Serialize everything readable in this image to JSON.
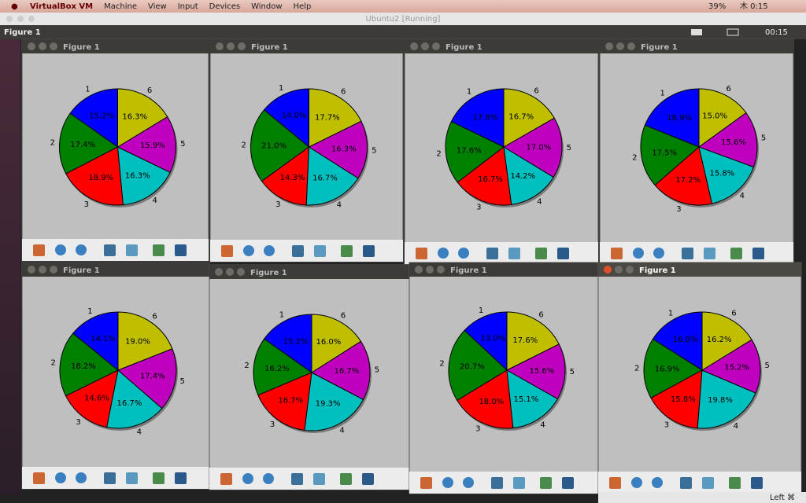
{
  "mac_menu": {
    "items": [
      "VirtualBox VM",
      "Machine",
      "View",
      "Input",
      "Devices",
      "Window",
      "Help"
    ],
    "battery": "39%",
    "clock": "木 0:15"
  },
  "vm_title": "Ubuntu2 [Running]",
  "panel": {
    "title": "Figure 1",
    "clock": "00:15"
  },
  "host_key": "Left ⌘",
  "windows": [
    {
      "title": "Figure 1"
    },
    {
      "title": "Figure 1"
    },
    {
      "title": "Figure 1"
    },
    {
      "title": "Figure 1"
    },
    {
      "title": "Figure 1"
    },
    {
      "title": "Figure 1"
    },
    {
      "title": "Figure 1"
    },
    {
      "title": "Figure 1"
    }
  ],
  "chart_data": [
    {
      "type": "pie",
      "categories": [
        "1",
        "2",
        "3",
        "4",
        "5",
        "6"
      ],
      "values": [
        15.2,
        17.4,
        18.9,
        16.3,
        15.9,
        16.3
      ],
      "value_labels": [
        "15.2%",
        "17.4%",
        "18.9%",
        "16.3%",
        "15.9%",
        "16.3%"
      ],
      "colors": [
        "#0000ff",
        "#008000",
        "#ff0000",
        "#00bfbf",
        "#bf00bf",
        "#bfbf00"
      ]
    },
    {
      "type": "pie",
      "categories": [
        "1",
        "2",
        "3",
        "4",
        "5",
        "6"
      ],
      "values": [
        14.0,
        21.0,
        14.3,
        16.7,
        16.3,
        17.7
      ],
      "value_labels": [
        "14.0%",
        "21.0%",
        "14.3%",
        "16.7%",
        "16.3%",
        "17.7%"
      ],
      "colors": [
        "#0000ff",
        "#008000",
        "#ff0000",
        "#00bfbf",
        "#bf00bf",
        "#bfbf00"
      ]
    },
    {
      "type": "pie",
      "categories": [
        "1",
        "2",
        "3",
        "4",
        "5",
        "6"
      ],
      "values": [
        17.8,
        17.6,
        16.7,
        14.2,
        17.0,
        16.7
      ],
      "value_labels": [
        "17.8%",
        "17.6%",
        "16.7%",
        "14.2%",
        "17.0%",
        "16.7%"
      ],
      "colors": [
        "#0000ff",
        "#008000",
        "#ff0000",
        "#00bfbf",
        "#bf00bf",
        "#bfbf00"
      ]
    },
    {
      "type": "pie",
      "categories": [
        "1",
        "2",
        "3",
        "4",
        "5",
        "6"
      ],
      "values": [
        18.9,
        17.5,
        17.2,
        15.8,
        15.6,
        15.0
      ],
      "value_labels": [
        "18.9%",
        "17.5%",
        "17.2%",
        "15.8%",
        "15.6%",
        "15.0%"
      ],
      "colors": [
        "#0000ff",
        "#008000",
        "#ff0000",
        "#00bfbf",
        "#bf00bf",
        "#bfbf00"
      ]
    },
    {
      "type": "pie",
      "categories": [
        "1",
        "2",
        "3",
        "4",
        "5",
        "6"
      ],
      "values": [
        14.1,
        18.2,
        14.6,
        16.7,
        17.4,
        19.0
      ],
      "value_labels": [
        "14.1%",
        "18.2%",
        "14.6%",
        "16.7%",
        "17.4%",
        "19.0%"
      ],
      "colors": [
        "#0000ff",
        "#008000",
        "#ff0000",
        "#00bfbf",
        "#bf00bf",
        "#bfbf00"
      ]
    },
    {
      "type": "pie",
      "categories": [
        "1",
        "2",
        "3",
        "4",
        "5",
        "6"
      ],
      "values": [
        15.2,
        16.2,
        16.7,
        19.3,
        16.7,
        16.0
      ],
      "value_labels": [
        "15.2%",
        "16.2%",
        "16.7%",
        "19.3%",
        "16.7%",
        "16.0%"
      ],
      "colors": [
        "#0000ff",
        "#008000",
        "#ff0000",
        "#00bfbf",
        "#bf00bf",
        "#bfbf00"
      ]
    },
    {
      "type": "pie",
      "categories": [
        "1",
        "2",
        "3",
        "4",
        "5",
        "6"
      ],
      "values": [
        13.0,
        20.7,
        18.0,
        15.1,
        15.6,
        17.6
      ],
      "value_labels": [
        "13.0%",
        "20.7%",
        "18.0%",
        "15.1%",
        "15.6%",
        "17.6%"
      ],
      "colors": [
        "#0000ff",
        "#008000",
        "#ff0000",
        "#00bfbf",
        "#bf00bf",
        "#bfbf00"
      ]
    },
    {
      "type": "pie",
      "categories": [
        "1",
        "2",
        "3",
        "4",
        "5",
        "6"
      ],
      "values": [
        16.0,
        16.9,
        15.8,
        19.8,
        15.2,
        16.2
      ],
      "value_labels": [
        "16.0%",
        "16.9%",
        "15.8%",
        "19.8%",
        "15.2%",
        "16.2%"
      ],
      "colors": [
        "#0000ff",
        "#008000",
        "#ff0000",
        "#00bfbf",
        "#bf00bf",
        "#bfbf00"
      ]
    }
  ]
}
